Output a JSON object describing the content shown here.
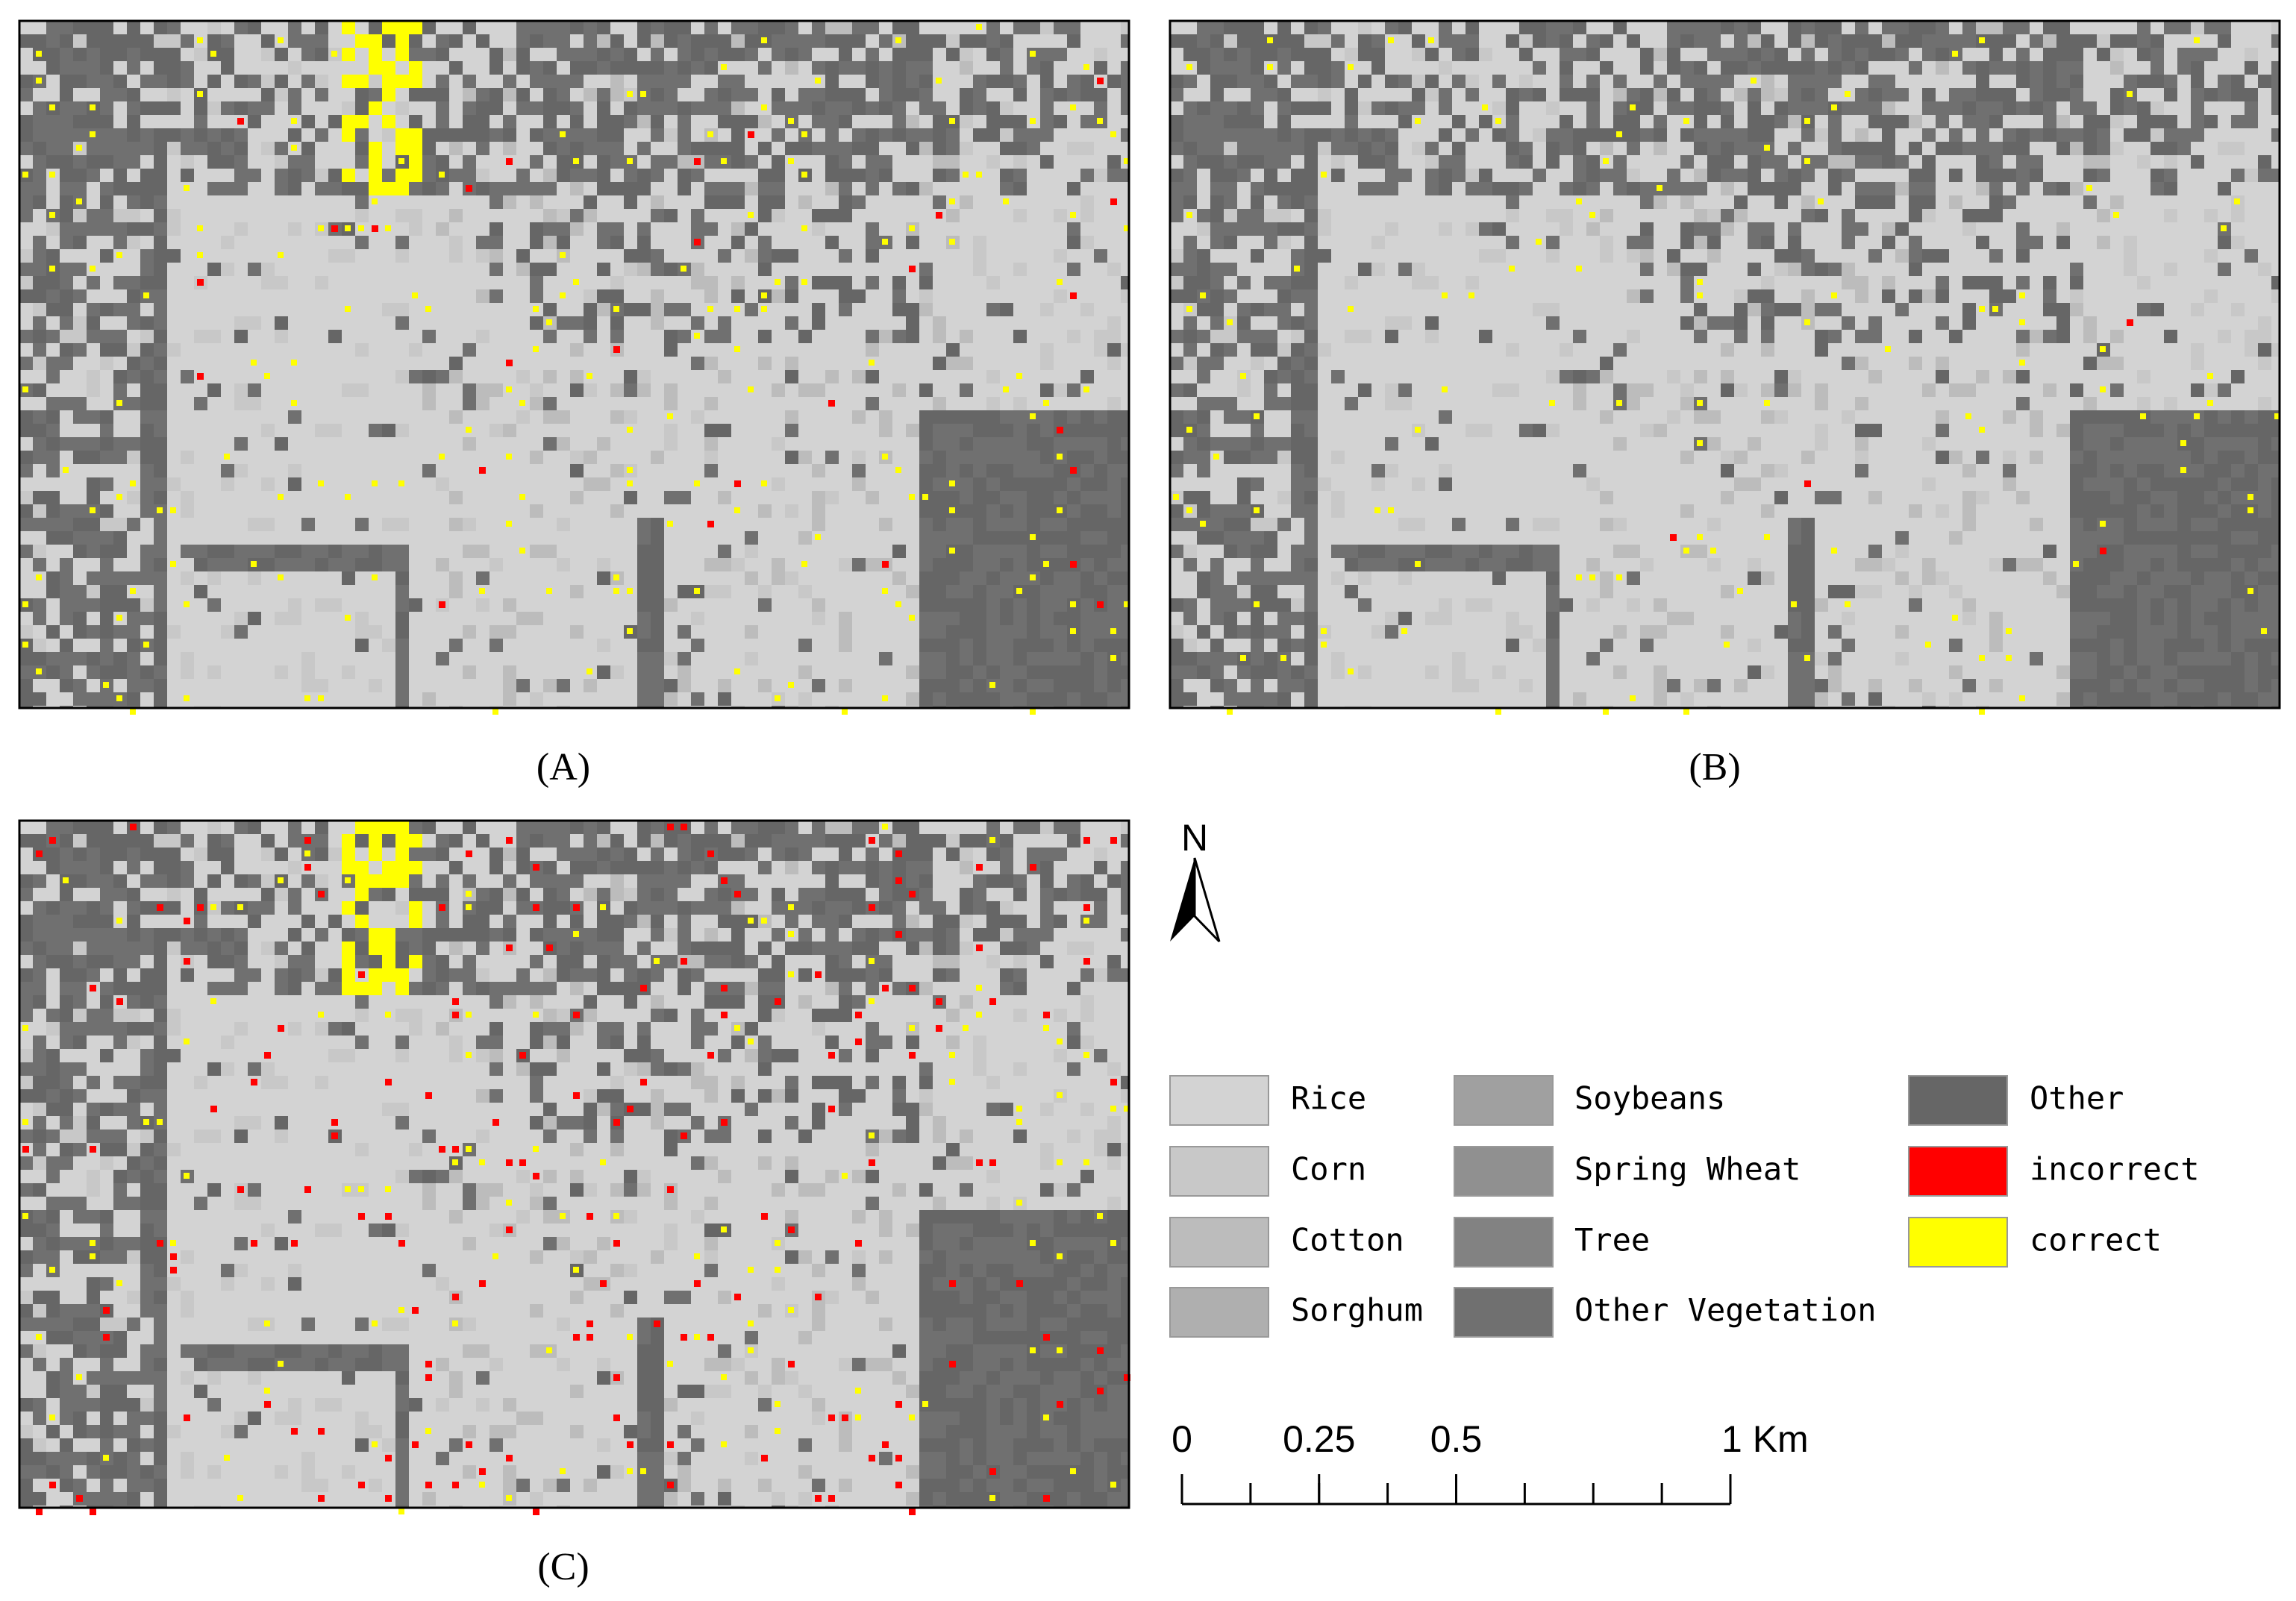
{
  "panels": [
    {
      "label": "(A)"
    },
    {
      "label": "(B)"
    },
    {
      "label": "(C)"
    }
  ],
  "north_arrow": {
    "label": "N"
  },
  "legend": [
    {
      "name": "Rice",
      "color": "#d3d3d3"
    },
    {
      "name": "Corn",
      "color": "#c8c8c8"
    },
    {
      "name": "Cotton",
      "color": "#bcbcbc"
    },
    {
      "name": "Sorghum",
      "color": "#afafaf"
    },
    {
      "name": "Soybeans",
      "color": "#a0a0a0"
    },
    {
      "name": "Spring Wheat",
      "color": "#909090"
    },
    {
      "name": "Tree",
      "color": "#828282"
    },
    {
      "name": "Other Vegetation",
      "color": "#707070"
    },
    {
      "name": "Other",
      "color": "#666666"
    },
    {
      "name": "incorrect",
      "color": "#ff0000"
    },
    {
      "name": "correct",
      "color": "#ffff00"
    }
  ],
  "scale_bar": {
    "ticks": [
      0,
      0.25,
      0.5,
      {
        "value": 1,
        "label": "1 Km"
      }
    ]
  }
}
